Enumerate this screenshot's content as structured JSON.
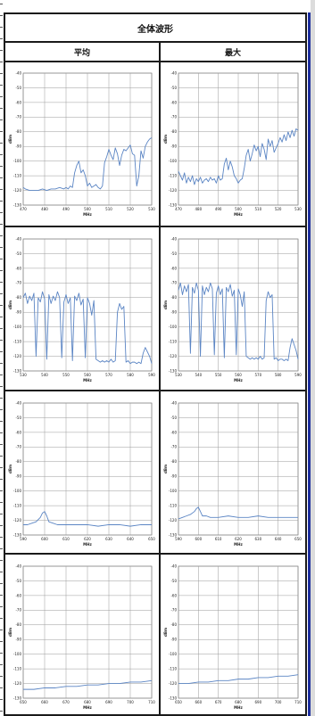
{
  "header": {
    "title": "全体波形"
  },
  "columns": [
    {
      "label": "平均"
    },
    {
      "label": "最大"
    }
  ],
  "chart_data": [
    {
      "id": "r1-avg",
      "type": "line",
      "row": 1,
      "col": "平均",
      "xlabel": "MHz",
      "ylabel": "dBm",
      "xticks": [
        "470",
        "480",
        "490",
        "500",
        "510",
        "520",
        "530"
      ],
      "yticks": [
        "-40",
        "-50",
        "-60",
        "-70",
        "-80",
        "-90",
        "-100",
        "-110",
        "-120",
        "-130"
      ],
      "ylim": [
        -130,
        -40
      ],
      "xlim": [
        470,
        530
      ],
      "grid": true,
      "color": "#5b85c4",
      "x": [
        470,
        471,
        473,
        475,
        477,
        479,
        481,
        483,
        485,
        487,
        489,
        490,
        491,
        492,
        493,
        494,
        495,
        496,
        497,
        498,
        499,
        500,
        501,
        502,
        503,
        504,
        505,
        506,
        507,
        508,
        509,
        510,
        511,
        512,
        513,
        514,
        515,
        516,
        517,
        518,
        519,
        520,
        521,
        522,
        523,
        524,
        525,
        526,
        527,
        528,
        529,
        530
      ],
      "y": [
        -118,
        -119,
        -120,
        -120,
        -120,
        -119,
        -120,
        -119,
        -119,
        -118,
        -119,
        -118,
        -119,
        -117,
        -118,
        -108,
        -103,
        -100,
        -108,
        -106,
        -110,
        -117,
        -115,
        -118,
        -117,
        -116,
        -118,
        -119,
        -117,
        -101,
        -97,
        -92,
        -96,
        -99,
        -91,
        -95,
        -103,
        -96,
        -92,
        -93,
        -91,
        -89,
        -95,
        -96,
        -117,
        -110,
        -93,
        -98,
        -90,
        -87,
        -85,
        -84
      ]
    },
    {
      "id": "r1-max",
      "type": "line",
      "row": 1,
      "col": "最大",
      "xlabel": "MHz",
      "ylabel": "dBm",
      "xticks": [
        "470",
        "480",
        "490",
        "500",
        "510",
        "520",
        "530"
      ],
      "yticks": [
        "-40",
        "-50",
        "-60",
        "-70",
        "-80",
        "-90",
        "-100",
        "-110",
        "-120",
        "-130"
      ],
      "ylim": [
        -130,
        -40
      ],
      "xlim": [
        470,
        530
      ],
      "grid": true,
      "color": "#5b85c4",
      "x": [
        470,
        471,
        472,
        473,
        474,
        475,
        476,
        477,
        478,
        479,
        480,
        481,
        482,
        483,
        484,
        485,
        486,
        487,
        488,
        489,
        490,
        491,
        492,
        493,
        494,
        495,
        496,
        497,
        498,
        499,
        500,
        501,
        502,
        503,
        504,
        505,
        506,
        507,
        508,
        509,
        510,
        511,
        512,
        513,
        514,
        515,
        516,
        517,
        518,
        519,
        520,
        521,
        522,
        523,
        524,
        525,
        526,
        527,
        528,
        529,
        530
      ],
      "y": [
        -107,
        -110,
        -113,
        -108,
        -115,
        -111,
        -114,
        -110,
        -116,
        -112,
        -114,
        -111,
        -115,
        -113,
        -112,
        -114,
        -111,
        -113,
        -112,
        -115,
        -110,
        -113,
        -112,
        -102,
        -98,
        -106,
        -100,
        -104,
        -110,
        -112,
        -115,
        -113,
        -112,
        -105,
        -96,
        -92,
        -100,
        -95,
        -89,
        -93,
        -90,
        -97,
        -88,
        -92,
        -99,
        -85,
        -90,
        -86,
        -94,
        -91,
        -88,
        -84,
        -87,
        -82,
        -86,
        -80,
        -84,
        -79,
        -83,
        -78,
        -79
      ]
    },
    {
      "id": "r2-avg",
      "type": "line",
      "row": 2,
      "col": "平均",
      "xlabel": "MHz",
      "ylabel": "dBm",
      "xticks": [
        "530",
        "540",
        "550",
        "560",
        "570",
        "580",
        "590"
      ],
      "yticks": [
        "-40",
        "-50",
        "-60",
        "-70",
        "-80",
        "-90",
        "-100",
        "-110",
        "-120",
        "-130"
      ],
      "ylim": [
        -130,
        -40
      ],
      "xlim": [
        530,
        590
      ],
      "grid": true,
      "color": "#5b85c4",
      "x": [
        530,
        531,
        532,
        533,
        534,
        535,
        536,
        537,
        538,
        539,
        540,
        541,
        542,
        543,
        544,
        545,
        546,
        547,
        548,
        549,
        550,
        551,
        552,
        553,
        554,
        555,
        556,
        557,
        558,
        559,
        560,
        561,
        562,
        563,
        564,
        565,
        566,
        567,
        568,
        569,
        570,
        571,
        572,
        573,
        574,
        575,
        576,
        577,
        578,
        579,
        580,
        581,
        582,
        583,
        584,
        585,
        586,
        587,
        588,
        589,
        590
      ],
      "y": [
        -80,
        -77,
        -84,
        -79,
        -82,
        -77,
        -120,
        -80,
        -83,
        -76,
        -81,
        -122,
        -78,
        -84,
        -79,
        -82,
        -76,
        -80,
        -121,
        -83,
        -78,
        -84,
        -80,
        -123,
        -79,
        -82,
        -77,
        -85,
        -81,
        -121,
        -80,
        -84,
        -92,
        -82,
        -122,
        -123,
        -124,
        -123,
        -124,
        -123,
        -124,
        -122,
        -124,
        -123,
        -90,
        -84,
        -88,
        -86,
        -124,
        -123,
        -125,
        -124,
        -124,
        -125,
        -124,
        -125,
        -118,
        -114,
        -117,
        -120,
        -125
      ]
    },
    {
      "id": "r2-max",
      "type": "line",
      "row": 2,
      "col": "最大",
      "xlabel": "MHz",
      "ylabel": "dBm",
      "xticks": [
        "530",
        "540",
        "550",
        "560",
        "570",
        "580",
        "590"
      ],
      "yticks": [
        "-40",
        "-50",
        "-60",
        "-70",
        "-80",
        "-90",
        "-100",
        "-110",
        "-120",
        "-130"
      ],
      "ylim": [
        -130,
        -40
      ],
      "xlim": [
        530,
        590
      ],
      "grid": true,
      "color": "#5b85c4",
      "x": [
        530,
        531,
        532,
        533,
        534,
        535,
        536,
        537,
        538,
        539,
        540,
        541,
        542,
        543,
        544,
        545,
        546,
        547,
        548,
        549,
        550,
        551,
        552,
        553,
        554,
        555,
        556,
        557,
        558,
        559,
        560,
        561,
        562,
        563,
        564,
        565,
        566,
        567,
        568,
        569,
        570,
        571,
        572,
        573,
        574,
        575,
        576,
        577,
        578,
        579,
        580,
        581,
        582,
        583,
        584,
        585,
        586,
        587,
        588,
        589,
        590
      ],
      "y": [
        -75,
        -70,
        -78,
        -72,
        -76,
        -71,
        -118,
        -73,
        -77,
        -70,
        -75,
        -120,
        -72,
        -78,
        -73,
        -76,
        -70,
        -74,
        -119,
        -77,
        -72,
        -78,
        -74,
        -121,
        -73,
        -76,
        -71,
        -79,
        -75,
        -119,
        -74,
        -78,
        -86,
        -76,
        -120,
        -121,
        -122,
        -121,
        -122,
        -121,
        -122,
        -120,
        -122,
        -121,
        -82,
        -76,
        -80,
        -78,
        -122,
        -121,
        -123,
        -122,
        -122,
        -123,
        -122,
        -123,
        -114,
        -108,
        -112,
        -116,
        -122
      ]
    },
    {
      "id": "r3-avg",
      "type": "line",
      "row": 3,
      "col": "平均",
      "xlabel": "MHz",
      "ylabel": "dBm",
      "xticks": [
        "590",
        "600",
        "610",
        "620",
        "630",
        "640",
        "650"
      ],
      "yticks": [
        "-40",
        "-50",
        "-60",
        "-70",
        "-80",
        "-90",
        "-100",
        "-110",
        "-120",
        "-130"
      ],
      "ylim": [
        -130,
        -40
      ],
      "xlim": [
        590,
        650
      ],
      "grid": true,
      "color": "#5b85c4",
      "x": [
        590,
        592,
        594,
        596,
        598,
        599,
        600,
        601,
        602,
        604,
        606,
        610,
        615,
        620,
        625,
        630,
        635,
        640,
        645,
        650
      ],
      "y": [
        -123,
        -123,
        -122,
        -121,
        -118,
        -115,
        -114,
        -117,
        -121,
        -122,
        -123,
        -123,
        -123,
        -123,
        -124,
        -123,
        -123,
        -124,
        -123,
        -123
      ]
    },
    {
      "id": "r3-max",
      "type": "line",
      "row": 3,
      "col": "最大",
      "xlabel": "MHz",
      "ylabel": "dBm",
      "xticks": [
        "590",
        "600",
        "610",
        "620",
        "630",
        "640",
        "650"
      ],
      "yticks": [
        "-40",
        "-50",
        "-60",
        "-70",
        "-80",
        "-90",
        "-100",
        "-110",
        "-120",
        "-130"
      ],
      "ylim": [
        -130,
        -40
      ],
      "xlim": [
        590,
        650
      ],
      "grid": true,
      "color": "#5b85c4",
      "x": [
        590,
        592,
        594,
        596,
        598,
        599,
        600,
        601,
        602,
        604,
        606,
        610,
        615,
        620,
        625,
        630,
        635,
        640,
        645,
        650
      ],
      "y": [
        -119,
        -118,
        -117,
        -116,
        -114,
        -112,
        -111,
        -114,
        -117,
        -117,
        -118,
        -118,
        -117,
        -118,
        -118,
        -117,
        -118,
        -118,
        -118,
        -118
      ]
    },
    {
      "id": "r4-avg",
      "type": "line",
      "row": 4,
      "col": "平均",
      "xlabel": "MHz",
      "ylabel": "dBm",
      "xticks": [
        "650",
        "660",
        "670",
        "680",
        "690",
        "700",
        "710"
      ],
      "yticks": [
        "-40",
        "-50",
        "-60",
        "-70",
        "-80",
        "-90",
        "-100",
        "-110",
        "-120",
        "-130"
      ],
      "ylim": [
        -130,
        -40
      ],
      "xlim": [
        650,
        710
      ],
      "grid": true,
      "color": "#5b85c4",
      "x": [
        650,
        655,
        660,
        665,
        670,
        675,
        680,
        685,
        690,
        695,
        700,
        705,
        710
      ],
      "y": [
        -124,
        -124,
        -123,
        -123,
        -122,
        -122,
        -121,
        -121,
        -120,
        -120,
        -119,
        -119,
        -118
      ]
    },
    {
      "id": "r4-max",
      "type": "line",
      "row": 4,
      "col": "最大",
      "xlabel": "MHz",
      "ylabel": "dBm",
      "xticks": [
        "650",
        "660",
        "670",
        "680",
        "690",
        "700",
        "710"
      ],
      "yticks": [
        "-40",
        "-50",
        "-60",
        "-70",
        "-80",
        "-90",
        "-100",
        "-110",
        "-120",
        "-130"
      ],
      "ylim": [
        -130,
        -40
      ],
      "xlim": [
        650,
        710
      ],
      "grid": true,
      "color": "#5b85c4",
      "x": [
        650,
        655,
        660,
        665,
        670,
        675,
        680,
        685,
        690,
        695,
        700,
        705,
        710
      ],
      "y": [
        -120,
        -120,
        -119,
        -119,
        -118,
        -118,
        -117,
        -117,
        -116,
        -116,
        -115,
        -115,
        -114
      ]
    }
  ]
}
